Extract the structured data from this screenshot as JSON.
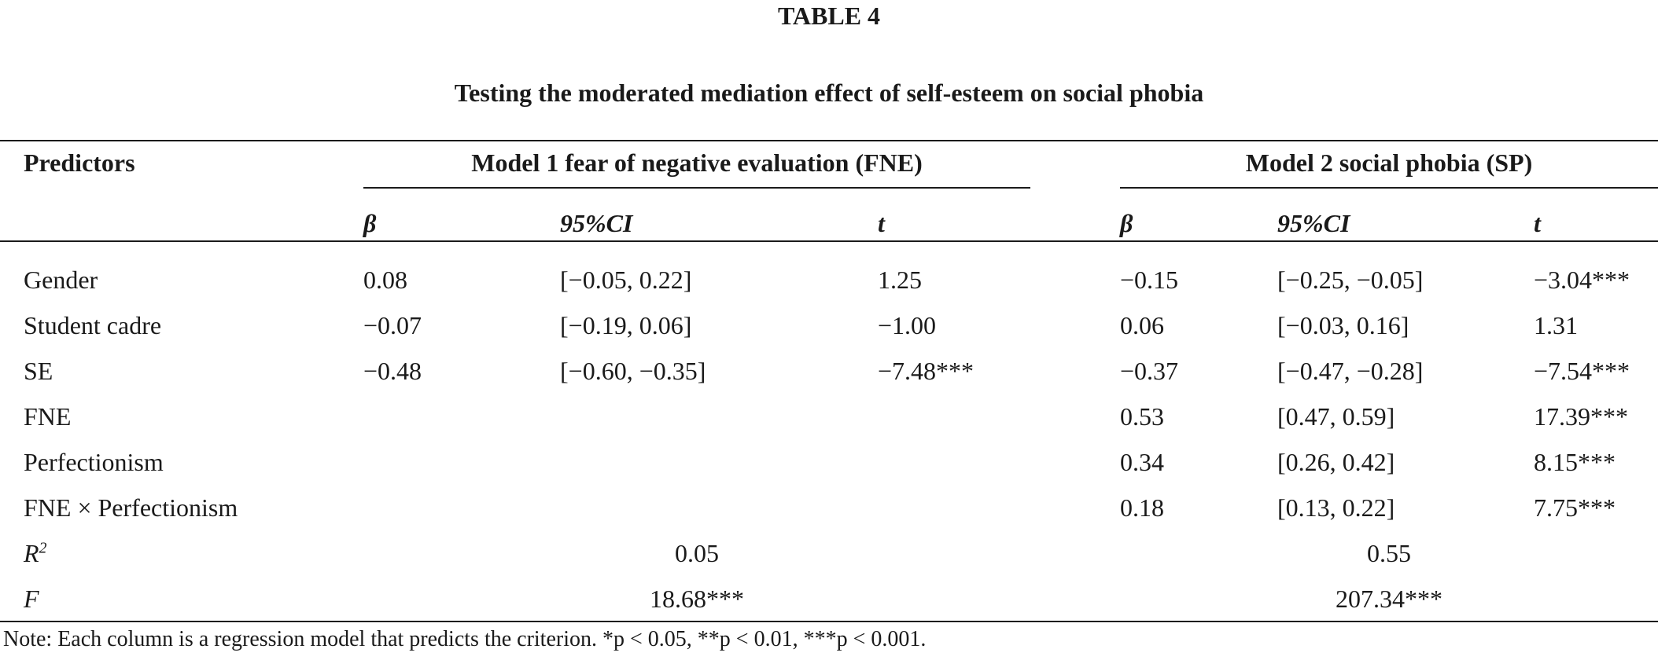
{
  "table": {
    "label": "TABLE 4",
    "title": "Testing the moderated mediation effect of self-esteem on social phobia",
    "predictors_header": "Predictors",
    "model1_title": "Model 1 fear of negative evaluation (FNE)",
    "model2_title": "Model 2 social phobia (SP)",
    "subheaders": {
      "beta": "β",
      "ci": "95%CI",
      "t": "t"
    },
    "rows": [
      {
        "label": "Gender",
        "m1": {
          "b": "0.08",
          "ci": "[−0.05, 0.22]",
          "t": "1.25"
        },
        "m2": {
          "b": "−0.15",
          "ci": "[−0.25, −0.05]",
          "t": "−3.04***"
        }
      },
      {
        "label": "Student cadre",
        "m1": {
          "b": "−0.07",
          "ci": "[−0.19, 0.06]",
          "t": "−1.00"
        },
        "m2": {
          "b": "0.06",
          "ci": "[−0.03, 0.16]",
          "t": "1.31"
        }
      },
      {
        "label": "SE",
        "m1": {
          "b": "−0.48",
          "ci": "[−0.60, −0.35]",
          "t": "−7.48***"
        },
        "m2": {
          "b": "−0.37",
          "ci": "[−0.47, −0.28]",
          "t": "−7.54***"
        }
      },
      {
        "label": "FNE",
        "m1": {
          "b": "",
          "ci": "",
          "t": ""
        },
        "m2": {
          "b": "0.53",
          "ci": "[0.47, 0.59]",
          "t": "17.39***"
        }
      },
      {
        "label": "Perfectionism",
        "m1": {
          "b": "",
          "ci": "",
          "t": ""
        },
        "m2": {
          "b": "0.34",
          "ci": "[0.26, 0.42]",
          "t": "8.15***"
        }
      },
      {
        "label": "FNE × Perfectionism",
        "m1": {
          "b": "",
          "ci": "",
          "t": ""
        },
        "m2": {
          "b": "0.18",
          "ci": "[0.13, 0.22]",
          "t": "7.75***"
        }
      }
    ],
    "r2": {
      "label_base": "R",
      "label_sup": "2",
      "m1": "0.05",
      "m2": "0.55"
    },
    "f": {
      "label": "F",
      "m1": "18.68***",
      "m2": "207.34***"
    },
    "note": "Note: Each column is a regression model that predicts the criterion. *p < 0.05, **p < 0.01, ***p < 0.001."
  }
}
